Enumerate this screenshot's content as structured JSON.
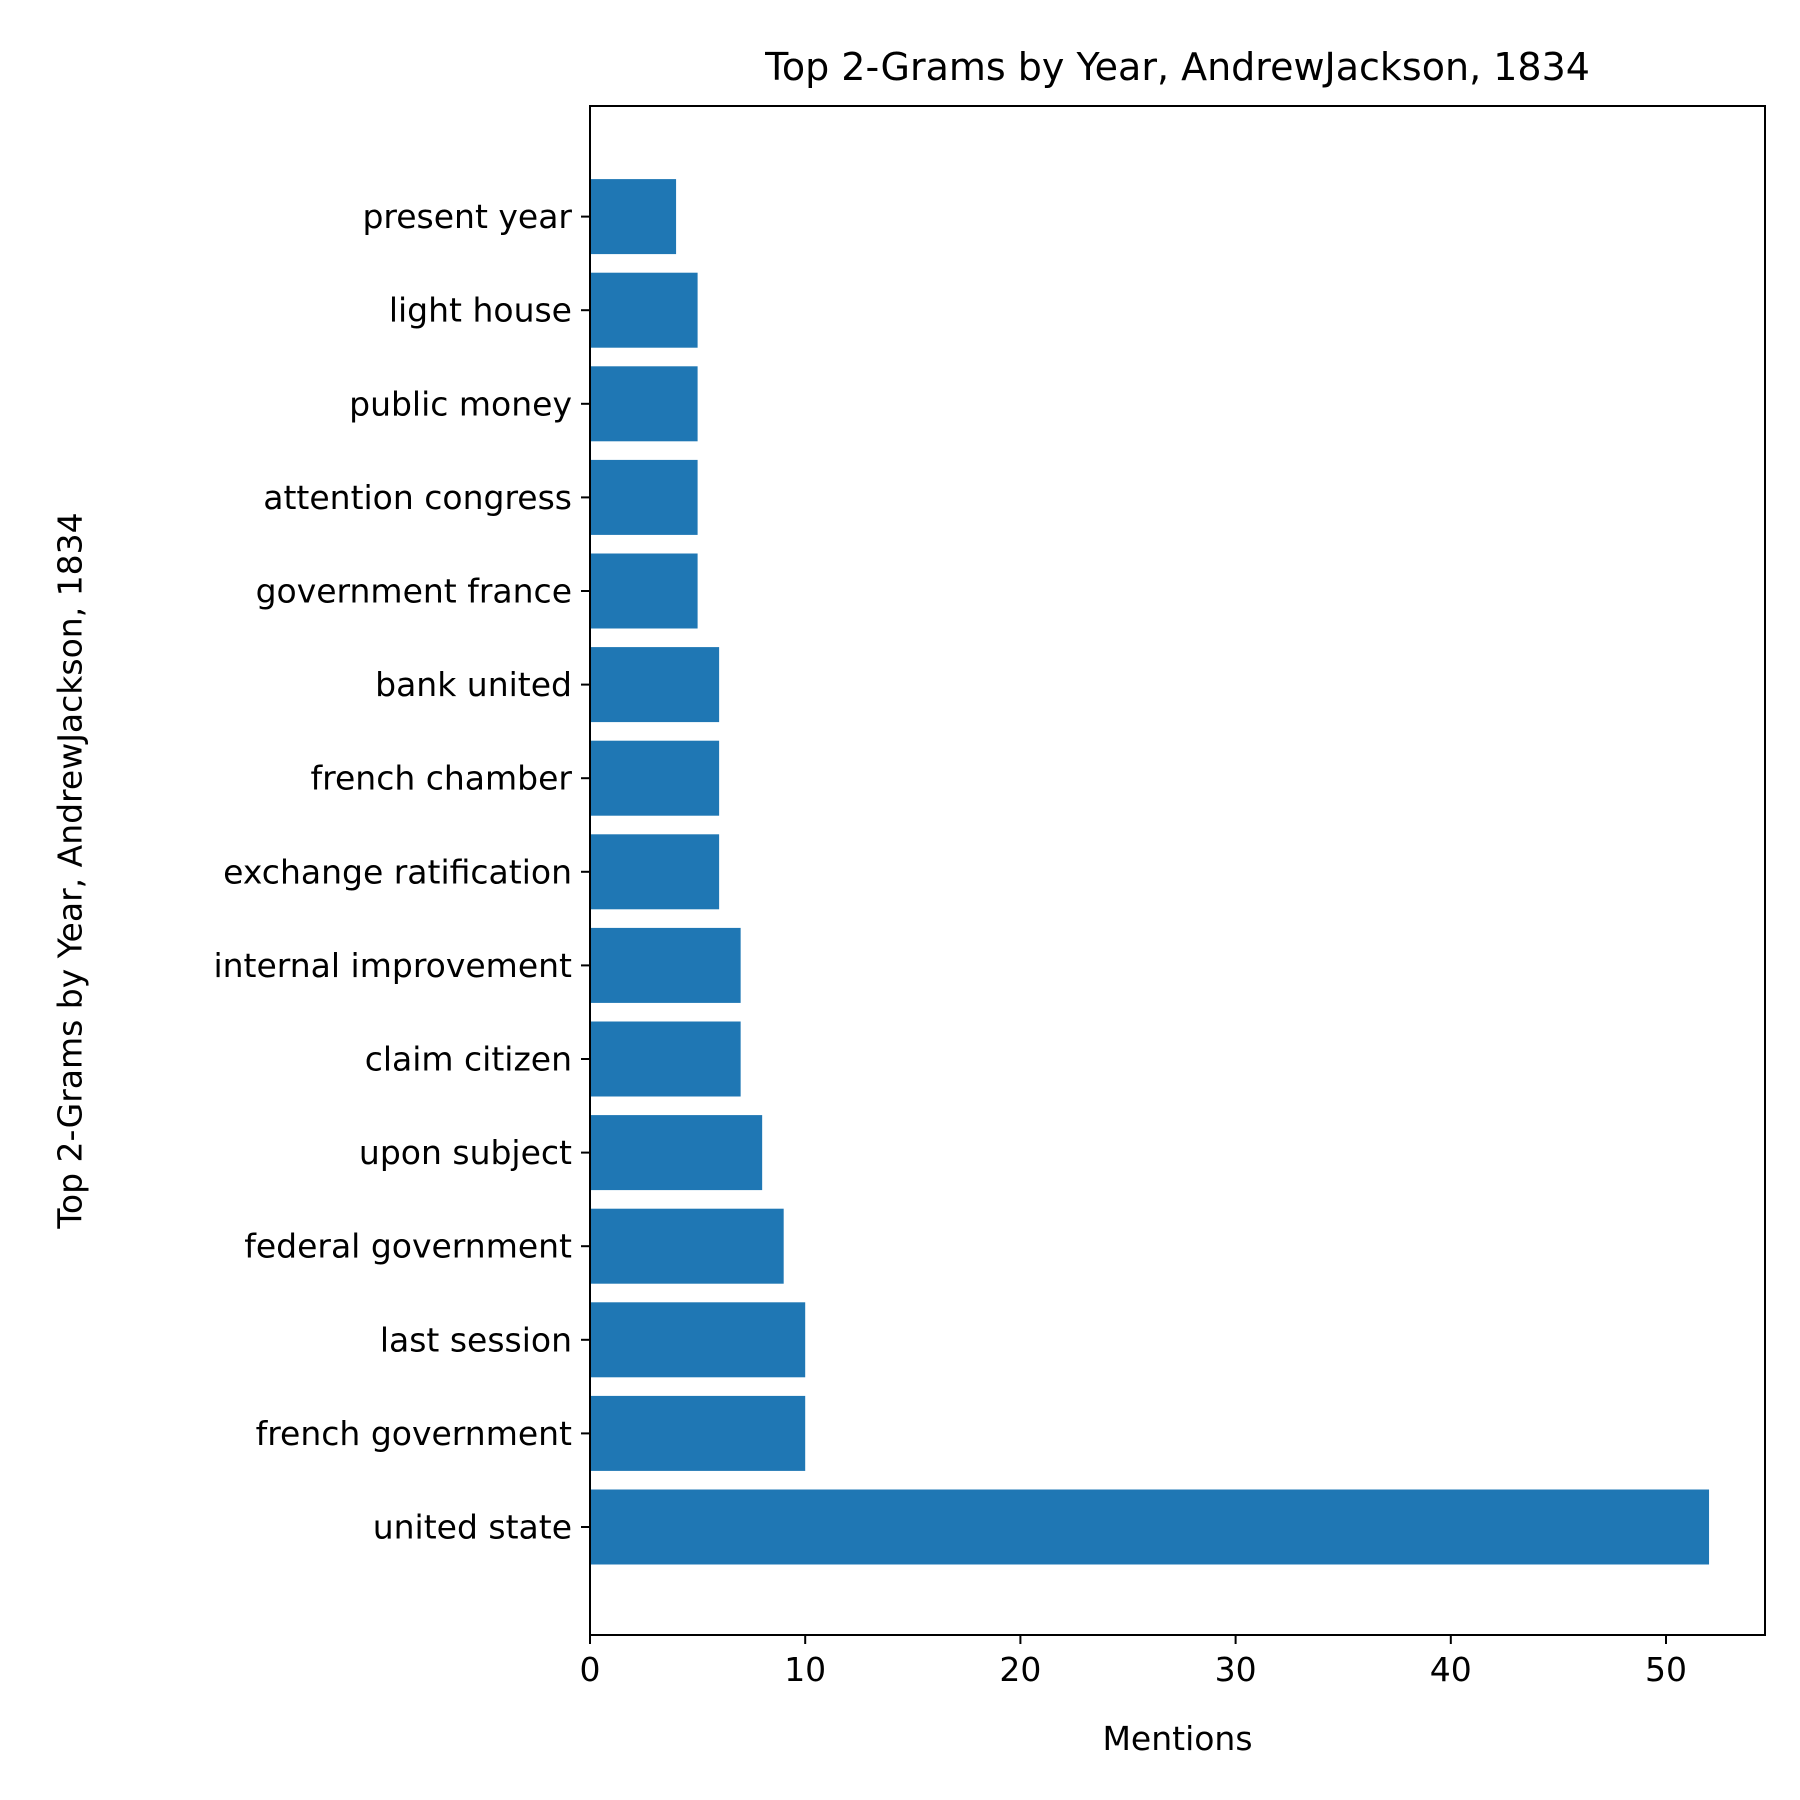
{
  "chart_data": {
    "type": "bar",
    "orientation": "horizontal",
    "title": "Top 2-Grams by Year, AndrewJackson, 1834",
    "xlabel": "Mentions",
    "ylabel": "Top 2-Grams by Year, AndrewJackson, 1834",
    "xlim": [
      0,
      54.6
    ],
    "xticks": [
      0,
      10,
      20,
      30,
      40,
      50
    ],
    "xtick_labels": [
      "0",
      "10",
      "20",
      "30",
      "40",
      "50"
    ],
    "grid": false,
    "legend": "none",
    "bar_color": "#1f77b4",
    "categories": [
      "united state",
      "french government",
      "last session",
      "federal government",
      "upon subject",
      "claim citizen",
      "internal improvement",
      "exchange ratification",
      "french chamber",
      "bank united",
      "government france",
      "attention congress",
      "public money",
      "light house",
      "present year"
    ],
    "values": [
      52,
      10,
      10,
      9,
      8,
      7,
      7,
      6,
      6,
      6,
      5,
      5,
      5,
      5,
      4
    ]
  }
}
